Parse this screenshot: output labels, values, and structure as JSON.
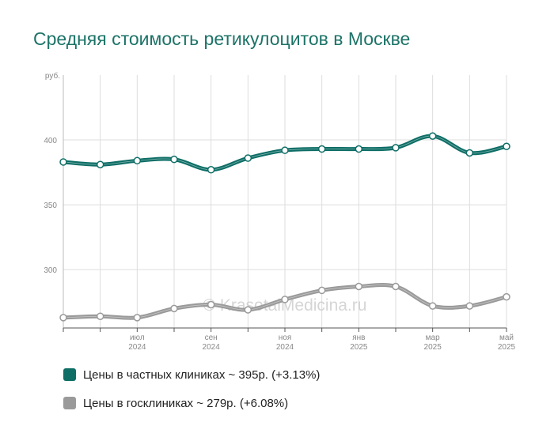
{
  "title": "Средняя стоимость ретикулоцитов в Москве",
  "watermark": "© KrasotaiMedicina.ru",
  "colors": {
    "private": "#0e6e66",
    "public": "#9a9a9a",
    "grid": "#dddddd",
    "axis_text": "#888888",
    "title": "#1c7367"
  },
  "chart_data": {
    "type": "line",
    "y_unit": "руб.",
    "ylim": [
      255,
      450
    ],
    "yticks": [
      300,
      350,
      400
    ],
    "x": [
      "2024-05",
      "2024-06",
      "2024-07",
      "2024-08",
      "2024-09",
      "2024-10",
      "2024-11",
      "2024-12",
      "2025-01",
      "2025-02",
      "2025-03",
      "2025-04",
      "2025-05"
    ],
    "x_tick_labels": [
      {
        "month": "июл",
        "year": "2024",
        "index": 2
      },
      {
        "month": "сен",
        "year": "2024",
        "index": 4
      },
      {
        "month": "ноя",
        "year": "2024",
        "index": 6
      },
      {
        "month": "янв",
        "year": "2025",
        "index": 8
      },
      {
        "month": "мар",
        "year": "2025",
        "index": 10
      },
      {
        "month": "май",
        "year": "2025",
        "index": 12
      }
    ],
    "series": [
      {
        "name": "Цены в частных клиниках",
        "key": "private",
        "values": [
          383,
          381,
          384,
          385,
          377,
          386,
          392,
          393,
          393,
          394,
          403,
          390,
          395
        ]
      },
      {
        "name": "Цены в госклиниках",
        "key": "public",
        "values": [
          263,
          264,
          263,
          270,
          273,
          269,
          277,
          284,
          287,
          287,
          272,
          272,
          279
        ]
      }
    ],
    "grid": true
  },
  "legend": {
    "private_text": "Цены в частных клиниках ~ 395р. (+3.13%)",
    "public_text": "Цены в госклиниках ~ 279р. (+6.08%)"
  }
}
